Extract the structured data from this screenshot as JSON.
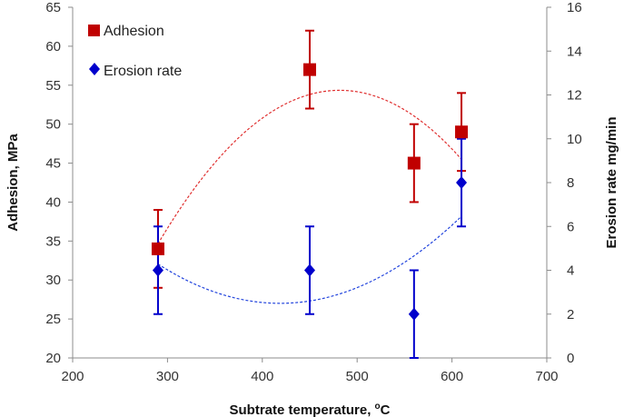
{
  "chart_data": {
    "type": "scatter",
    "xlabel": "Subtrate temperature, ",
    "xlabel_unit": "oC",
    "ylabel": "Adhesion, MPa",
    "y2label": "Erosion rate mg/min",
    "xlim": [
      200,
      700
    ],
    "ylim": [
      20,
      65
    ],
    "y2lim": [
      0,
      16
    ],
    "xticks": [
      "200",
      "300",
      "400",
      "500",
      "600",
      "700"
    ],
    "yticks": [
      "20",
      "25",
      "30",
      "35",
      "40",
      "45",
      "50",
      "55",
      "60",
      "65"
    ],
    "y2ticks": [
      "0",
      "2",
      "4",
      "6",
      "8",
      "10",
      "12",
      "14",
      "16"
    ],
    "grid": false,
    "legend_position": "top-left",
    "series": [
      {
        "name": "Adhesion",
        "axis": "left",
        "marker": "square",
        "color": "#c00000",
        "x": [
          290,
          450,
          560,
          610
        ],
        "y": [
          34,
          57,
          45,
          49
        ],
        "error": [
          5,
          5,
          5,
          5
        ],
        "trend_color": "#e03030"
      },
      {
        "name": "Erosion rate",
        "axis": "right",
        "marker": "diamond",
        "color": "#0000cc",
        "x": [
          290,
          450,
          560,
          610
        ],
        "y": [
          4,
          4,
          2,
          8
        ],
        "error": [
          2,
          2,
          2,
          2
        ],
        "trend_color": "#2244dd"
      }
    ]
  }
}
